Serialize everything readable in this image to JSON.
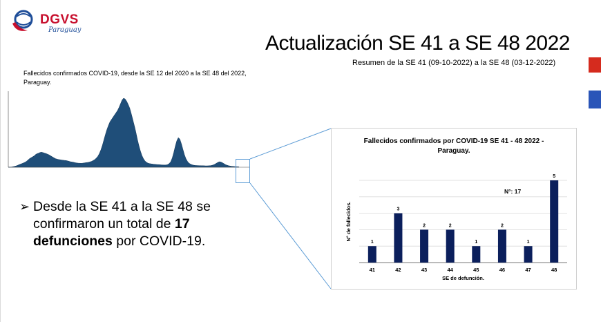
{
  "logo": {
    "name": "DGVS",
    "sub": "Paraguay"
  },
  "slide": {
    "title": "Actualización SE 41 a SE 48 2022",
    "subtitle": "Resumen de la SE 41 (09-10-2022) a la SE 48 (03-12-2022)"
  },
  "small_chart": {
    "title_line1": "Fallecidos confirmados COVID-19, desde la SE 12 del 2020 a la SE 48 del 2022,",
    "title_line2": "Paraguay."
  },
  "bullet": {
    "marker": "➢",
    "pre": "Desde la SE 41 a la SE 48 se confirmaron un total de ",
    "bold1": "17",
    "mid": " ",
    "bold2": "defunciones",
    "post": " por COVID-19."
  },
  "chart_data": [
    {
      "type": "area",
      "series": [
        {
          "values": [
            0,
            2,
            5,
            10,
            18,
            28,
            40,
            55,
            68,
            80,
            95,
            110,
            130,
            160,
            190,
            210,
            230,
            250,
            280,
            300,
            310,
            325,
            330,
            320,
            310,
            300,
            285,
            270,
            250,
            230,
            210,
            190,
            180,
            170,
            165,
            160,
            155,
            150,
            148,
            140,
            130,
            120,
            115,
            110,
            100,
            95,
            90,
            88,
            85,
            90,
            95,
            100,
            105,
            110,
            120,
            130,
            150,
            170,
            200,
            240,
            300,
            380,
            480,
            600,
            720,
            830,
            920,
            1000,
            1050,
            1100,
            1150,
            1200,
            1250,
            1320,
            1400,
            1480,
            1520,
            1500,
            1450,
            1380,
            1300,
            1180,
            1050,
            920,
            780,
            620,
            480,
            360,
            260,
            190,
            140,
            110,
            90,
            80,
            75,
            70,
            65,
            62,
            60,
            58,
            55,
            52,
            50,
            48,
            50,
            60,
            80,
            120,
            200,
            320,
            460,
            580,
            650,
            620,
            520,
            400,
            280,
            190,
            130,
            90,
            70,
            55,
            45,
            40,
            38,
            36,
            35,
            34,
            33,
            32,
            31,
            30,
            32,
            35,
            40,
            50,
            65,
            85,
            105,
            120,
            115,
            100,
            80,
            60,
            45,
            35,
            28,
            22,
            18,
            15,
            12,
            10,
            8
          ]
        }
      ]
    },
    {
      "type": "bar",
      "title": "Fallecidos confirmados por COVID-19  SE 41 - 48 2022 - Paraguay.",
      "categories": [
        "41",
        "42",
        "43",
        "44",
        "45",
        "46",
        "47",
        "48"
      ],
      "values": [
        1,
        3,
        2,
        2,
        1,
        2,
        1,
        5
      ],
      "xlabel": "SE de defunción.",
      "ylabel": "N° de fallecidos.",
      "ylim": [
        0,
        5
      ],
      "annotation": "N°: 17",
      "bar_color": "#0b1f5c",
      "grid": true
    }
  ]
}
